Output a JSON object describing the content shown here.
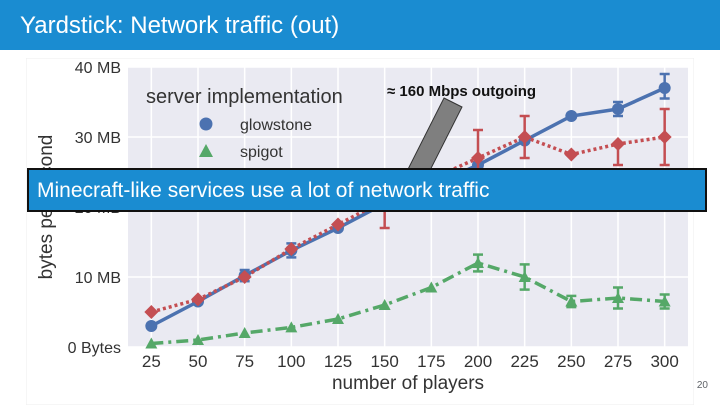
{
  "slide": {
    "title": "Yardstick: Network traffic (out)",
    "banner": "Minecraft-like services use a lot of network traffic",
    "page_number": "20",
    "annotation": "≈ 160 Mbps outgoing",
    "header_color": "#1a8cd1"
  },
  "chart_data": {
    "type": "line",
    "xlabel": "number of players",
    "ylabel": "bytes per second",
    "x": [
      25,
      50,
      75,
      100,
      125,
      150,
      175,
      200,
      225,
      250,
      275,
      300
    ],
    "xlim": [
      25,
      300
    ],
    "ylim": [
      0,
      40
    ],
    "y_unit": "MB",
    "yticks": [
      0,
      10,
      20,
      30,
      40
    ],
    "ytick_labels": [
      "0 Bytes",
      "10 MB",
      "20 MB",
      "30 MB",
      "40 MB"
    ],
    "grid": true,
    "legend_title": "server implementation",
    "legend_position": "top-left",
    "series": [
      {
        "name": "glowstone",
        "color": "#4c72b0",
        "marker": "circle",
        "line": "solid",
        "values": [
          3,
          6.5,
          10.2,
          13.8,
          17,
          20.5,
          23,
          26,
          29.5,
          33,
          34,
          37
        ],
        "err_low": [
          0,
          0,
          0.8,
          1,
          0,
          0,
          0,
          0,
          0,
          0,
          1,
          1.5
        ],
        "err_high": [
          0,
          0,
          0.8,
          1,
          0,
          0,
          0,
          0,
          0,
          0,
          1,
          2
        ]
      },
      {
        "name": "",
        "color": "#c44e52",
        "marker": "diamond",
        "line": "dotted",
        "values": [
          5,
          6.8,
          10,
          14,
          17.5,
          21,
          24,
          27,
          30,
          27.5,
          29,
          30
        ],
        "err_low": [
          0,
          0,
          0,
          0,
          0,
          4,
          0,
          4,
          3,
          0,
          3,
          4
        ],
        "err_high": [
          0,
          0,
          0,
          0,
          0,
          0,
          0,
          4,
          3,
          0,
          0,
          4
        ]
      },
      {
        "name": "spigot",
        "color": "#55a868",
        "marker": "triangle",
        "line": "dashdot",
        "values": [
          0.5,
          1,
          2,
          2.8,
          4,
          6,
          8.5,
          12,
          10,
          6.5,
          7,
          6.5
        ],
        "err_low": [
          0,
          0,
          0,
          0,
          0,
          0,
          0,
          1.2,
          1.8,
          0.8,
          1.5,
          1
        ],
        "err_high": [
          0,
          0,
          0,
          0,
          0,
          0,
          0,
          1.2,
          1.8,
          0.8,
          1.5,
          1
        ]
      }
    ]
  }
}
